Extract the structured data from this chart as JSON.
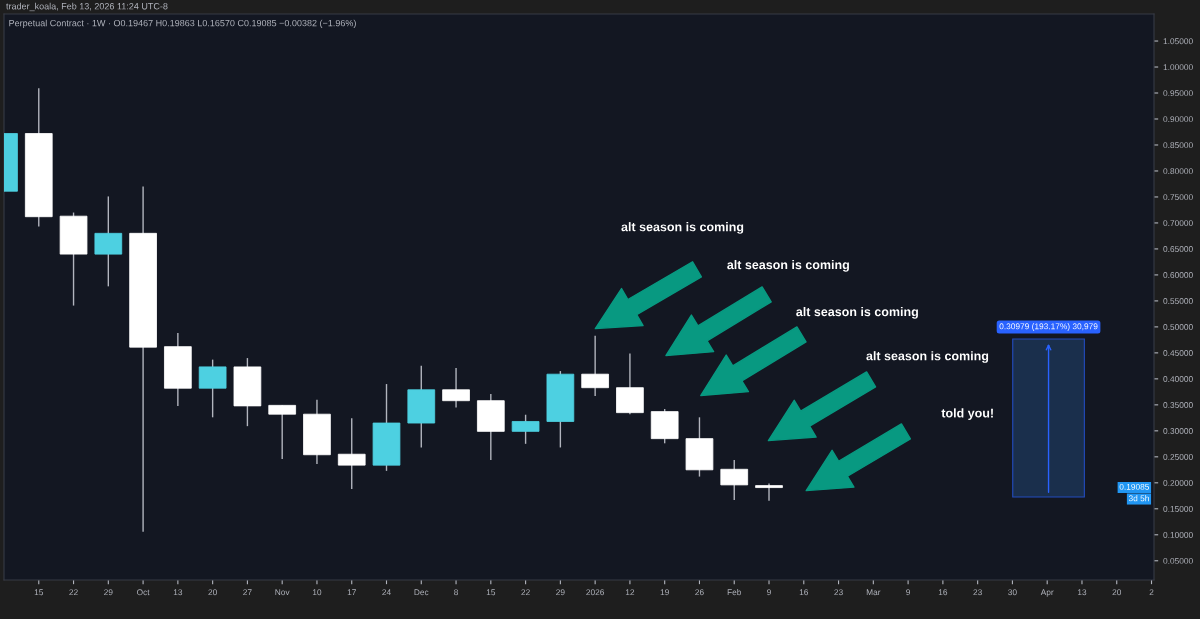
{
  "chart_data": {
    "type": "candlestick",
    "title": "trader_koala, Feb 13, 2026 11:24 UTC-8",
    "subtitle": "Perpetual Contract · 1W · O0.19467 H0.19863 L0.16570 C0.19085 −0.00382 (−1.96%)",
    "x": [
      "2025-09-08",
      "2025-09-15",
      "2025-09-22",
      "2025-09-29",
      "2025-10-06",
      "2025-10-13",
      "2025-10-20",
      "2025-10-27",
      "2025-11-03",
      "2025-11-10",
      "2025-11-17",
      "2025-11-24",
      "2025-12-01",
      "2025-12-08",
      "2025-12-15",
      "2025-12-22",
      "2025-12-29",
      "2026-01-05",
      "2026-01-12",
      "2026-01-19",
      "2026-01-26",
      "2026-02-02",
      "2026-02-09"
    ],
    "ohlc": [
      [
        0.761,
        0.872,
        0.761,
        0.872
      ],
      [
        0.872,
        0.959,
        0.693,
        0.712
      ],
      [
        0.713,
        0.72,
        0.541,
        0.64
      ],
      [
        0.64,
        0.751,
        0.578,
        0.68
      ],
      [
        0.68,
        0.77,
        0.106,
        0.461
      ],
      [
        0.462,
        0.488,
        0.348,
        0.382
      ],
      [
        0.382,
        0.437,
        0.326,
        0.423
      ],
      [
        0.423,
        0.44,
        0.309,
        0.348
      ],
      [
        0.349,
        0.349,
        0.246,
        0.332
      ],
      [
        0.332,
        0.36,
        0.236,
        0.254
      ],
      [
        0.255,
        0.324,
        0.188,
        0.234
      ],
      [
        0.234,
        0.39,
        0.223,
        0.315
      ],
      [
        0.315,
        0.425,
        0.268,
        0.379
      ],
      [
        0.379,
        0.421,
        0.345,
        0.358
      ],
      [
        0.358,
        0.371,
        0.244,
        0.299
      ],
      [
        0.299,
        0.331,
        0.275,
        0.318
      ],
      [
        0.318,
        0.415,
        0.268,
        0.409
      ],
      [
        0.409,
        0.483,
        0.367,
        0.383
      ],
      [
        0.383,
        0.449,
        0.332,
        0.335
      ],
      [
        0.337,
        0.342,
        0.276,
        0.285
      ],
      [
        0.285,
        0.326,
        0.212,
        0.225
      ],
      [
        0.226,
        0.244,
        0.167,
        0.196
      ],
      [
        0.19467,
        0.19863,
        0.1657,
        0.19085
      ]
    ],
    "colors": [
      "#4dd0e1",
      "#ffffff",
      "#ffffff",
      "#4dd0e1",
      "#ffffff",
      "#ffffff",
      "#4dd0e1",
      "#ffffff",
      "#ffffff",
      "#ffffff",
      "#ffffff",
      "#4dd0e1",
      "#4dd0e1",
      "#ffffff",
      "#ffffff",
      "#4dd0e1",
      "#4dd0e1",
      "#ffffff",
      "#ffffff",
      "#ffffff",
      "#ffffff",
      "#ffffff",
      "#ffffff"
    ],
    "xlim": [
      "2025-09-08",
      "2026-04-27T12:00"
    ],
    "xticks": [
      {
        "value": "2025-09-15",
        "label": "15"
      },
      {
        "value": "2025-09-22",
        "label": "22"
      },
      {
        "value": "2025-09-29",
        "label": "29"
      },
      {
        "value": "2025-10-06",
        "label": "Oct"
      },
      {
        "value": "2025-10-13",
        "label": "13"
      },
      {
        "value": "2025-10-20",
        "label": "20"
      },
      {
        "value": "2025-10-27",
        "label": "27"
      },
      {
        "value": "2025-11-03",
        "label": "Nov"
      },
      {
        "value": "2025-11-10",
        "label": "10"
      },
      {
        "value": "2025-11-17",
        "label": "17"
      },
      {
        "value": "2025-11-24",
        "label": "24"
      },
      {
        "value": "2025-12-01",
        "label": "Dec"
      },
      {
        "value": "2025-12-08",
        "label": "8"
      },
      {
        "value": "2025-12-15",
        "label": "15"
      },
      {
        "value": "2025-12-22",
        "label": "22"
      },
      {
        "value": "2025-12-29",
        "label": "29"
      },
      {
        "value": "2026-01-05",
        "label": "2026"
      },
      {
        "value": "2026-01-12",
        "label": "12"
      },
      {
        "value": "2026-01-19",
        "label": "19"
      },
      {
        "value": "2026-01-26",
        "label": "26"
      },
      {
        "value": "2026-02-02",
        "label": "Feb"
      },
      {
        "value": "2026-02-09",
        "label": "9"
      },
      {
        "value": "2026-02-16",
        "label": "16"
      },
      {
        "value": "2026-02-23",
        "label": "23"
      },
      {
        "value": "2026-03-02",
        "label": "Mar"
      },
      {
        "value": "2026-03-09",
        "label": "9"
      },
      {
        "value": "2026-03-16",
        "label": "16"
      },
      {
        "value": "2026-03-23",
        "label": "23"
      },
      {
        "value": "2026-03-30",
        "label": "30"
      },
      {
        "value": "2026-04-06",
        "label": "Apr"
      },
      {
        "value": "2026-04-13",
        "label": "13"
      },
      {
        "value": "2026-04-20",
        "label": "20"
      },
      {
        "value": "2026-04-27",
        "label": "2"
      }
    ],
    "ylim": [
      0.013,
      1.102
    ],
    "yticks": [
      {
        "value": 0.05,
        "label": "0.05000"
      },
      {
        "value": 0.1,
        "label": "0.10000"
      },
      {
        "value": 0.15,
        "label": "0.15000"
      },
      {
        "value": 0.2,
        "label": "0.20000"
      },
      {
        "value": 0.25,
        "label": "0.25000"
      },
      {
        "value": 0.3,
        "label": "0.30000"
      },
      {
        "value": 0.35,
        "label": "0.35000"
      },
      {
        "value": 0.4,
        "label": "0.40000"
      },
      {
        "value": 0.45,
        "label": "0.45000"
      },
      {
        "value": 0.5,
        "label": "0.50000"
      },
      {
        "value": 0.55,
        "label": "0.55000"
      },
      {
        "value": 0.6,
        "label": "0.60000"
      },
      {
        "value": 0.65,
        "label": "0.65000"
      },
      {
        "value": 0.7,
        "label": "0.70000"
      },
      {
        "value": 0.75,
        "label": "0.75000"
      },
      {
        "value": 0.8,
        "label": "0.80000"
      },
      {
        "value": 0.85,
        "label": "0.85000"
      },
      {
        "value": 0.9,
        "label": "0.90000"
      },
      {
        "value": 0.95,
        "label": "0.95000"
      },
      {
        "value": 1.0,
        "label": "1.00000"
      },
      {
        "value": 1.05,
        "label": "1.05000"
      }
    ],
    "annotations": [
      "alt season is coming",
      "alt season is coming",
      "alt season is coming",
      "alt season is coming",
      "told you!",
      "0.30979 (193.17%) 30,979",
      {
        "text": "0.19085",
        "y": 0.19085
      },
      "3d 5h"
    ]
  }
}
